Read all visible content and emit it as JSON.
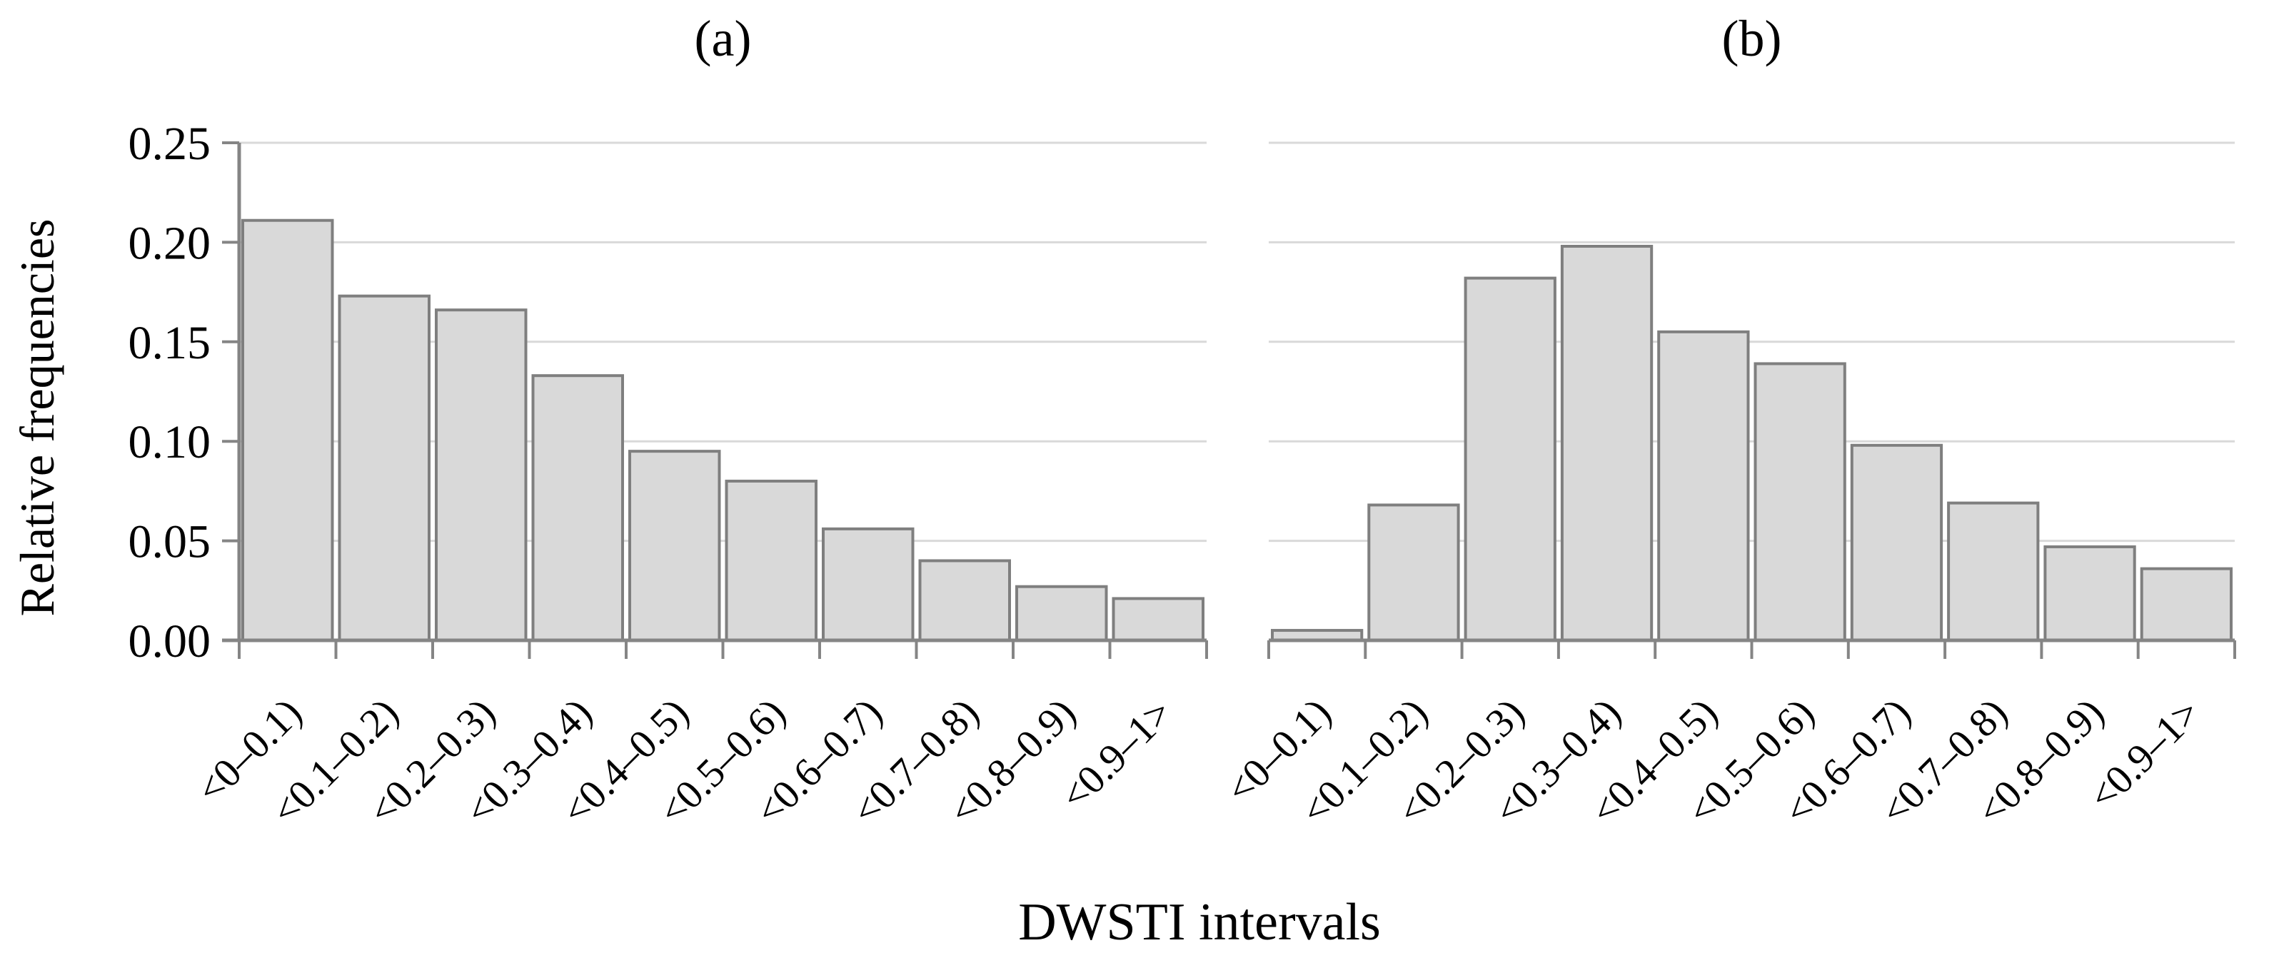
{
  "figure": {
    "ylabel": "Relative frequencies",
    "xlabel": "DWSTI intervals"
  },
  "colors": {
    "background": "#ffffff",
    "bar_fill": "#d9d9d9",
    "bar_stroke": "#7f7f7f",
    "gridline": "#d9d9d9",
    "axis": "#858585",
    "text": "#000000"
  },
  "y_axis": {
    "min": 0,
    "max": 0.25,
    "step": 0.05,
    "tick_labels": [
      "0.00",
      "0.05",
      "0.10",
      "0.15",
      "0.20",
      "0.25"
    ]
  },
  "chart_data": [
    {
      "type": "bar",
      "panel": "a",
      "title": "(a)",
      "xlabel": "DWSTI intervals",
      "ylabel": "Relative frequencies",
      "categories": [
        "<0–0.1)",
        "<0.1–0.2)",
        "<0.2–0.3)",
        "<0.3–0.4)",
        "<0.4–0.5)",
        "<0.5–0.6)",
        "<0.6–0.7)",
        "<0.7–0.8)",
        "<0.8–0.9)",
        "<0.9–1>"
      ],
      "values": [
        0.211,
        0.173,
        0.166,
        0.133,
        0.095,
        0.08,
        0.056,
        0.04,
        0.027,
        0.021
      ],
      "ylim": [
        0,
        0.25
      ],
      "grid": true,
      "legend": "none"
    },
    {
      "type": "bar",
      "panel": "b",
      "title": "(b)",
      "xlabel": "DWSTI intervals",
      "ylabel": "Relative frequencies",
      "categories": [
        "<0–0.1)",
        "<0.1–0.2)",
        "<0.2–0.3)",
        "<0.3–0.4)",
        "<0.4–0.5)",
        "<0.5–0.6)",
        "<0.6–0.7)",
        "<0.7–0.8)",
        "<0.8–0.9)",
        "<0.9–1>"
      ],
      "values": [
        0.005,
        0.068,
        0.182,
        0.198,
        0.155,
        0.139,
        0.098,
        0.069,
        0.047,
        0.036
      ],
      "ylim": [
        0,
        0.25
      ],
      "grid": true,
      "legend": "none"
    }
  ]
}
